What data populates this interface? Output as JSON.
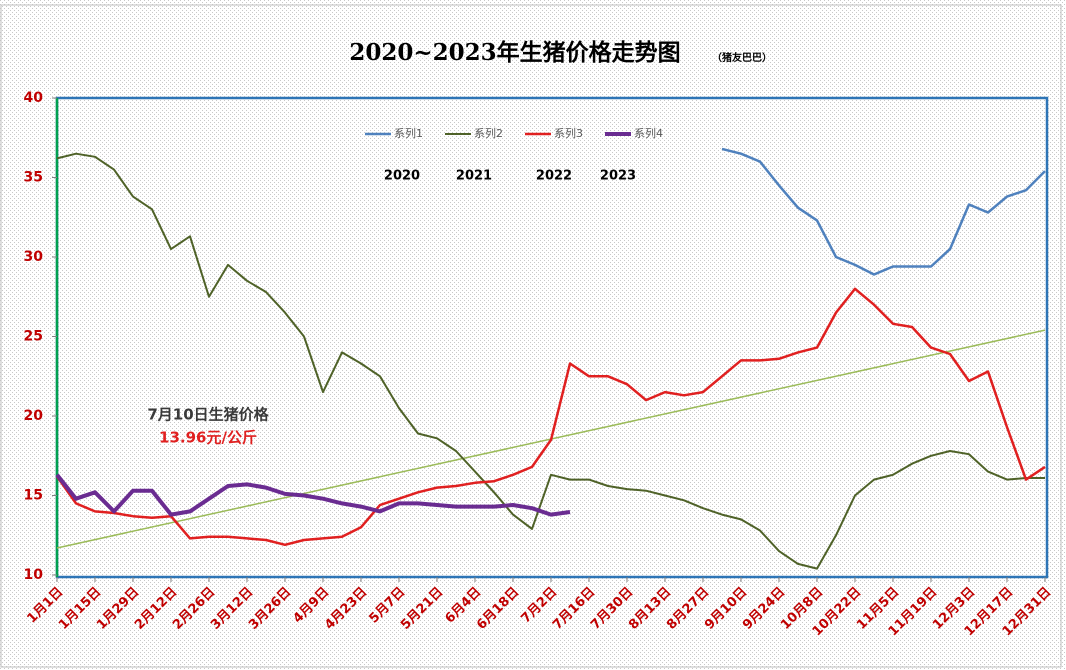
{
  "chart_data": {
    "type": "line",
    "title": "2020~2023年生猪价格走势图",
    "subtitle": "（猪友巴巴）",
    "annotations": [
      "7月10日生猪价格",
      "13.96元/公斤"
    ],
    "year_labels": [
      "2020",
      "2021",
      "2022",
      "2023"
    ],
    "xlim": [
      1,
      365
    ],
    "xticks": [
      {
        "value": 1,
        "label": "1月1日"
      },
      {
        "value": 15,
        "label": "1月15日"
      },
      {
        "value": 29,
        "label": "1月29日"
      },
      {
        "value": 43,
        "label": "2月12日"
      },
      {
        "value": 57,
        "label": "2月26日"
      },
      {
        "value": 71,
        "label": "3月12日"
      },
      {
        "value": 85,
        "label": "3月26日"
      },
      {
        "value": 99,
        "label": "4月9日"
      },
      {
        "value": 113,
        "label": "4月23日"
      },
      {
        "value": 127,
        "label": "5月7日"
      },
      {
        "value": 141,
        "label": "5月21日"
      },
      {
        "value": 155,
        "label": "6月4日"
      },
      {
        "value": 169,
        "label": "6月18日"
      },
      {
        "value": 183,
        "label": "7月2日"
      },
      {
        "value": 197,
        "label": "7月16日"
      },
      {
        "value": 211,
        "label": "7月30日"
      },
      {
        "value": 225,
        "label": "8月13日"
      },
      {
        "value": 239,
        "label": "8月27日"
      },
      {
        "value": 253,
        "label": "9月10日"
      },
      {
        "value": 267,
        "label": "9月24日"
      },
      {
        "value": 281,
        "label": "10月8日"
      },
      {
        "value": 295,
        "label": "10月22日"
      },
      {
        "value": 309,
        "label": "11月5日"
      },
      {
        "value": 323,
        "label": "11月19日"
      },
      {
        "value": 337,
        "label": "12月3日"
      },
      {
        "value": 351,
        "label": "12月17日"
      },
      {
        "value": 365,
        "label": "12月31日"
      }
    ],
    "ylim": [
      10,
      40
    ],
    "yticks": [
      10,
      15,
      20,
      25,
      30,
      35,
      40
    ],
    "x": [
      1,
      8,
      15,
      22,
      29,
      36,
      43,
      50,
      57,
      64,
      71,
      78,
      85,
      92,
      99,
      106,
      113,
      120,
      127,
      134,
      141,
      148,
      155,
      162,
      169,
      176,
      183,
      190,
      197,
      204,
      211,
      218,
      225,
      232,
      239,
      246,
      253,
      260,
      267,
      274,
      281,
      288,
      295,
      302,
      309,
      316,
      323,
      330,
      337,
      344,
      351,
      358,
      365
    ],
    "series": [
      {
        "name": "系列1",
        "color": "#4f81bd",
        "width": 2.5,
        "values": [
          null,
          null,
          null,
          null,
          null,
          null,
          null,
          null,
          null,
          null,
          null,
          null,
          null,
          null,
          null,
          null,
          null,
          null,
          null,
          null,
          null,
          null,
          null,
          null,
          null,
          null,
          null,
          null,
          null,
          null,
          null,
          null,
          null,
          null,
          null,
          36.8,
          36.5,
          36.0,
          34.5,
          33.1,
          32.3,
          30.0,
          29.5,
          28.9,
          29.4,
          29.4,
          29.4,
          30.5,
          33.3,
          32.8,
          33.8,
          34.2,
          35.4
        ]
      },
      {
        "name": "系列2",
        "color": "#4f6228",
        "width": 2,
        "values": [
          36.2,
          36.5,
          36.3,
          35.5,
          33.8,
          33.0,
          30.5,
          31.3,
          27.5,
          29.5,
          28.5,
          27.8,
          26.5,
          25.0,
          21.5,
          24.0,
          23.3,
          22.5,
          20.5,
          18.9,
          18.6,
          17.8,
          16.5,
          15.2,
          13.8,
          12.9,
          16.3,
          16.0,
          16.0,
          15.6,
          15.4,
          15.3,
          15.0,
          14.7,
          14.2,
          13.8,
          13.5,
          12.8,
          11.5,
          10.7,
          10.4,
          12.5,
          15.0,
          16.0,
          16.3,
          17.0,
          17.5,
          17.8,
          17.6,
          16.5,
          16.0,
          16.1,
          16.1
        ]
      },
      {
        "name": "系列3",
        "color": "#e02020",
        "width": 2.5,
        "values": [
          16.2,
          14.5,
          14.0,
          13.9,
          13.7,
          13.6,
          13.7,
          12.3,
          12.4,
          12.4,
          12.3,
          12.2,
          11.9,
          12.2,
          12.3,
          12.4,
          13.0,
          14.4,
          14.8,
          15.2,
          15.5,
          15.6,
          15.8,
          15.9,
          16.3,
          16.8,
          18.5,
          23.3,
          22.5,
          22.5,
          22.0,
          21.0,
          21.5,
          21.3,
          21.5,
          22.5,
          23.5,
          23.5,
          23.6,
          24.0,
          24.3,
          26.5,
          28.0,
          27.0,
          25.8,
          25.6,
          24.3,
          23.9,
          22.2,
          22.8,
          19.3,
          16.0,
          16.8
        ]
      },
      {
        "name": "系列4",
        "color": "#6a2c91",
        "width": 4,
        "values": [
          16.3,
          14.8,
          15.2,
          14.0,
          15.3,
          15.3,
          13.8,
          14.0,
          14.8,
          15.6,
          15.7,
          15.5,
          15.1,
          15.0,
          14.8,
          14.5,
          14.3,
          14.0,
          14.5,
          14.5,
          14.4,
          14.3,
          14.3,
          14.3,
          14.4,
          14.2,
          13.8,
          13.96,
          null,
          null,
          null,
          null,
          null,
          null,
          null,
          null,
          null,
          null,
          null,
          null,
          null,
          null,
          null,
          null,
          null,
          null,
          null,
          null,
          null,
          null,
          null,
          null,
          null
        ]
      }
    ],
    "trendline": {
      "x": [
        1,
        365
      ],
      "values": [
        11.7,
        25.4
      ],
      "color": "#9bbb59"
    }
  }
}
